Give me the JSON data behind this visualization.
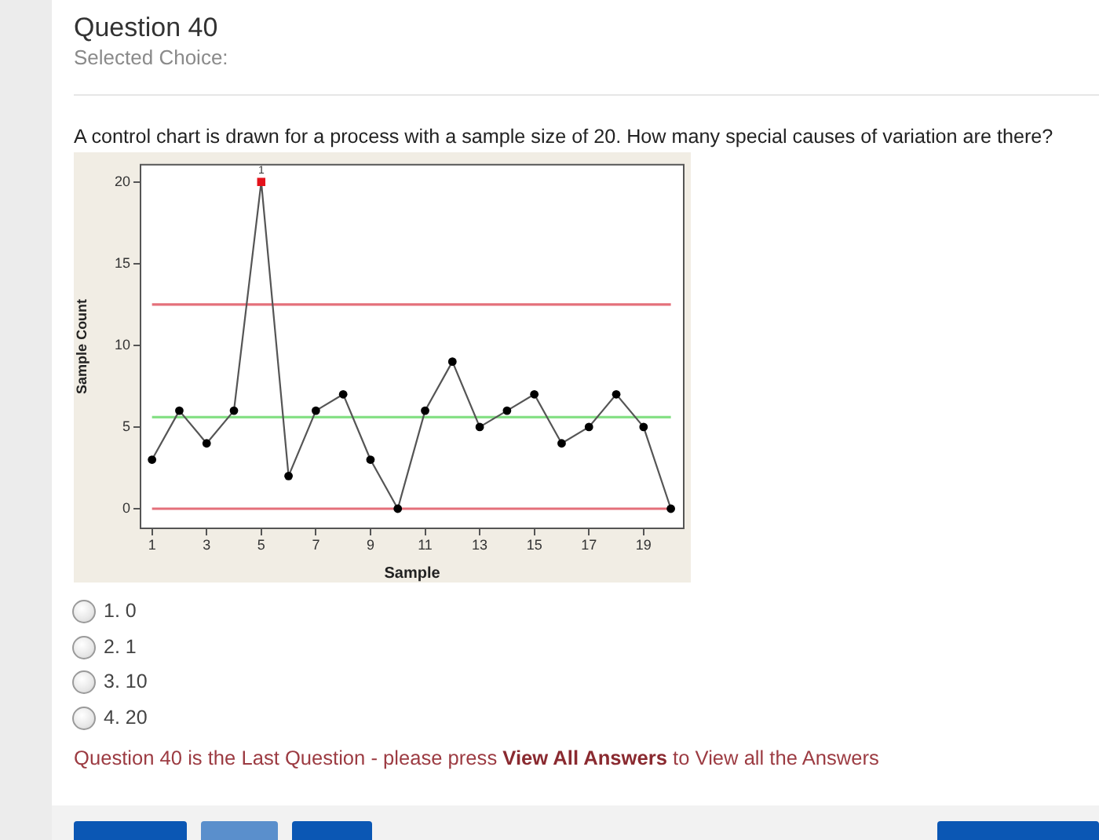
{
  "chart_data": {
    "type": "line",
    "title": "Question 40",
    "subtitle": "Selected Choice:",
    "xlabel": "Sample",
    "ylabel": "Sample Count",
    "x": [
      1,
      2,
      3,
      4,
      5,
      6,
      7,
      8,
      9,
      10,
      11,
      12,
      13,
      14,
      15,
      16,
      17,
      18,
      19,
      20
    ],
    "series": [
      {
        "color": "#555555",
        "marker": "none",
        "values": [
          3,
          6,
          4,
          6,
          20,
          2,
          6,
          7,
          3,
          0,
          6,
          9,
          5,
          6,
          7,
          4,
          5,
          7,
          5,
          0
        ]
      },
      {
        "type": "scatter",
        "color": "#000000",
        "marker": "circle",
        "values": [
          3,
          6,
          4,
          6,
          null,
          2,
          6,
          7,
          3,
          0,
          6,
          9,
          5,
          6,
          7,
          4,
          5,
          7,
          5,
          0
        ]
      },
      {
        "type": "scatter",
        "color": "#e3121b",
        "marker": "square",
        "x": [
          5
        ],
        "values": [
          20
        ]
      }
    ],
    "xlim": [
      0.55,
      20.5
    ],
    "xticks": [
      1,
      3,
      5,
      7,
      9,
      11,
      13,
      15,
      17,
      19
    ],
    "ylim": [
      -1.25,
      21.1
    ],
    "yticks": [
      0,
      5,
      10,
      15,
      20
    ],
    "ref_lines": [
      {
        "axis": "y",
        "value": 12.5,
        "color": "#e4707a"
      },
      {
        "axis": "y",
        "value": 5.6,
        "color": "#86e086"
      },
      {
        "axis": "y",
        "value": 0,
        "color": "#e4707a"
      }
    ],
    "annotations": [
      {
        "text": "1",
        "x": 5,
        "y": 20
      },
      "A control chart is drawn for a process with a sample size of 20. How many special causes of variation are there?",
      "1. 0",
      "2. 1",
      "3. 10",
      "4. 20",
      "Question 40 is the Last Question - please press",
      "View All Answers",
      "to View all the Answers"
    ]
  }
}
